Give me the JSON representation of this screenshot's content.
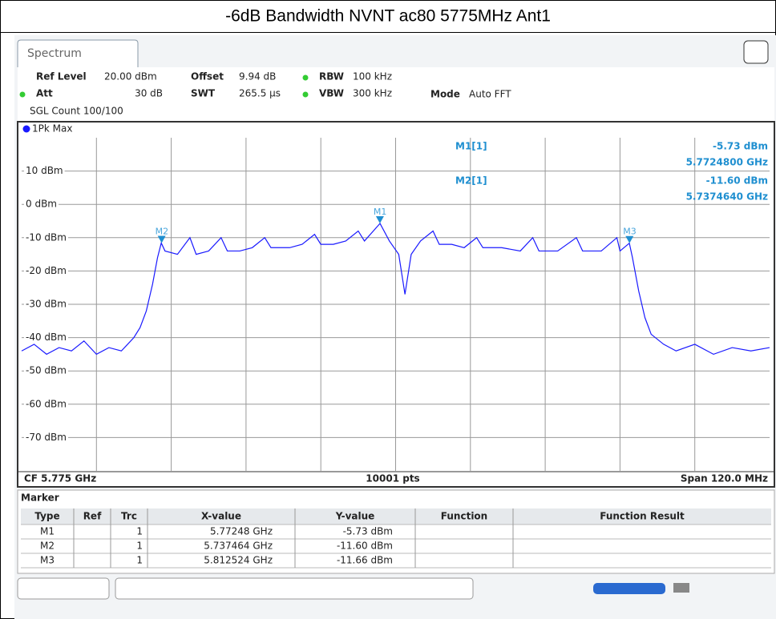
{
  "chart_data": {
    "type": "line",
    "title": "-6dB Bandwidth NVNT ac80 5775MHz Ant1",
    "tab": "Spectrum",
    "settings": {
      "ref_level_label": "Ref Level",
      "ref_level": "20.00 dBm",
      "offset_label": "Offset",
      "offset": "9.94 dB",
      "rbw_label": "RBW",
      "rbw": "100 kHz",
      "att_label": "Att",
      "att": "30 dB",
      "swt_label": "SWT",
      "swt": "265.5 µs",
      "vbw_label": "VBW",
      "vbw": "300 kHz",
      "mode_label": "Mode",
      "mode": "Auto FFT",
      "sgl_count": "SGL Count 100/100"
    },
    "trace_label": "1Pk Max",
    "footer": {
      "cf": "CF 5.775 GHz",
      "pts": "10001 pts",
      "span": "Span 120.0 MHz"
    },
    "xlim": [
      5.715,
      5.835
    ],
    "xticks": [
      5.727,
      5.739,
      5.751,
      5.763,
      5.775,
      5.787,
      5.799,
      5.811,
      5.823
    ],
    "ylim": [
      -80,
      20
    ],
    "yticks": [
      {
        "value": 10,
        "label": "10 dBm"
      },
      {
        "value": 0,
        "label": "0 dBm"
      },
      {
        "value": -10,
        "label": "-10 dBm"
      },
      {
        "value": -20,
        "label": "-20 dBm"
      },
      {
        "value": -30,
        "label": "-30 dBm"
      },
      {
        "value": -40,
        "label": "-40 dBm"
      },
      {
        "value": -50,
        "label": "-50 dBm"
      },
      {
        "value": -60,
        "label": "-60 dBm"
      },
      {
        "value": -70,
        "label": "-70 dBm"
      }
    ],
    "grid": true,
    "x": [
      5.715,
      5.717,
      5.719,
      5.721,
      5.723,
      5.725,
      5.727,
      5.729,
      5.731,
      5.732,
      5.733,
      5.734,
      5.735,
      5.736,
      5.7368,
      5.7374,
      5.738,
      5.74,
      5.742,
      5.743,
      5.745,
      5.747,
      5.748,
      5.75,
      5.752,
      5.754,
      5.755,
      5.758,
      5.76,
      5.762,
      5.763,
      5.765,
      5.767,
      5.769,
      5.77,
      5.7725,
      5.774,
      5.7755,
      5.7765,
      5.7775,
      5.779,
      5.781,
      5.782,
      5.784,
      5.786,
      5.788,
      5.789,
      5.792,
      5.795,
      5.797,
      5.798,
      5.801,
      5.804,
      5.805,
      5.808,
      5.8105,
      5.811,
      5.8125,
      5.813,
      5.814,
      5.815,
      5.816,
      5.818,
      5.82,
      5.823,
      5.826,
      5.829,
      5.832,
      5.835
    ],
    "series": [
      {
        "name": "1",
        "color": "#1a1aff",
        "values": [
          -44,
          -42,
          -45,
          -43,
          -44,
          -41,
          -45,
          -43,
          -44,
          -42,
          -40,
          -37,
          -32,
          -24,
          -16,
          -11.6,
          -14,
          -15,
          -10,
          -15,
          -14,
          -10,
          -14,
          -14,
          -13,
          -10,
          -13,
          -13,
          -12,
          -9,
          -12,
          -12,
          -11,
          -8,
          -11,
          -5.73,
          -11,
          -15,
          -27,
          -15,
          -11,
          -8,
          -12,
          -12,
          -13,
          -10,
          -13,
          -13,
          -14,
          -10,
          -14,
          -14,
          -10,
          -14,
          -14,
          -10,
          -14,
          -11.66,
          -16,
          -26,
          -34,
          -39,
          -42,
          -44,
          -42,
          -45,
          -43,
          -44,
          -43
        ]
      }
    ],
    "markers": [
      {
        "name": "M1",
        "x": 5.77248,
        "y": -5.73
      },
      {
        "name": "M2",
        "x": 5.737464,
        "y": -11.6
      },
      {
        "name": "M3",
        "x": 5.812524,
        "y": -11.66
      }
    ],
    "readout": [
      {
        "name": "M1[1]",
        "y": "-5.73 dBm",
        "x": "5.7724800 GHz"
      },
      {
        "name": "M2[1]",
        "y": "-11.60 dBm",
        "x": "5.7374640 GHz"
      }
    ],
    "marker_table": {
      "title": "Marker",
      "headers": [
        "Type",
        "Ref",
        "Trc",
        "X-value",
        "Y-value",
        "Function",
        "Function Result"
      ],
      "rows": [
        {
          "type": "M1",
          "trc": "1",
          "x": "5.77248 GHz",
          "y": "-5.73 dBm"
        },
        {
          "type": "M2",
          "trc": "1",
          "x": "5.737464 GHz",
          "y": "-11.60 dBm"
        },
        {
          "type": "M3",
          "trc": "1",
          "x": "5.812524 GHz",
          "y": "-11.66 dBm"
        }
      ]
    }
  }
}
